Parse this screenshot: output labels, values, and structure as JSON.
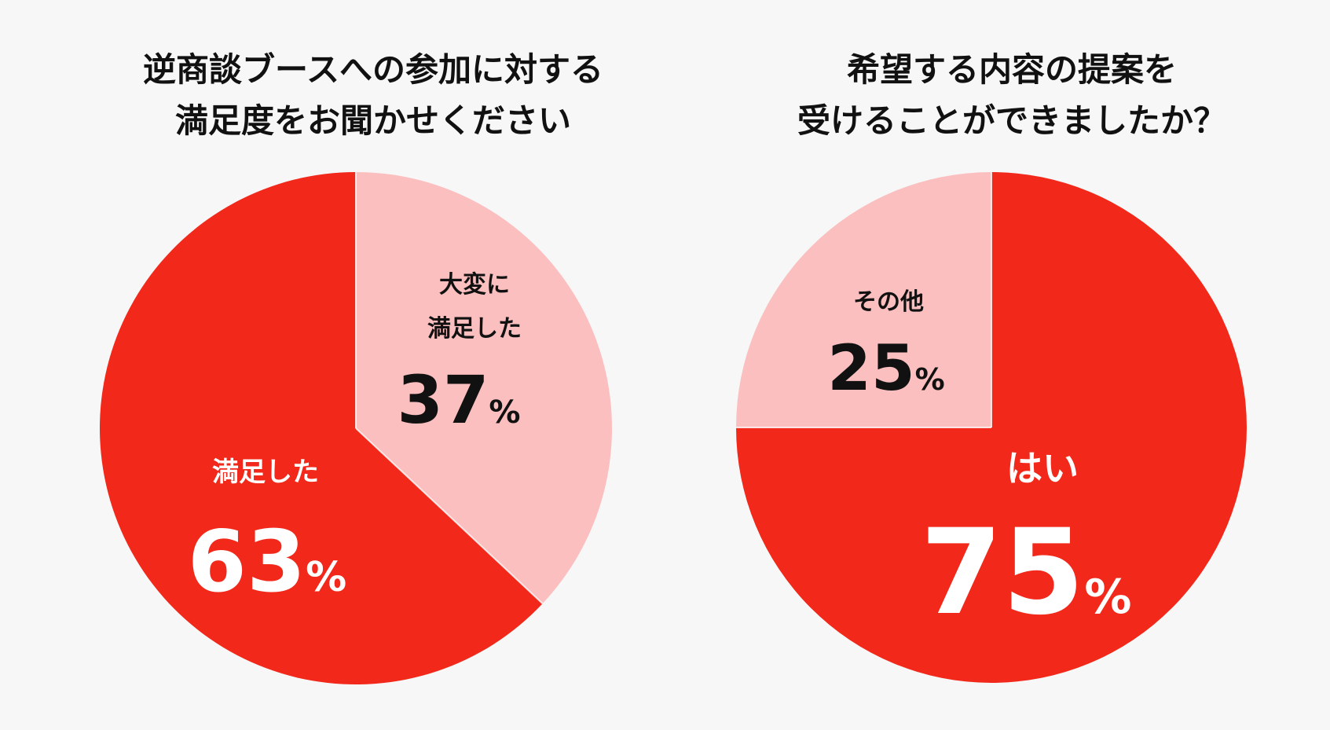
{
  "chart_data": [
    {
      "type": "pie",
      "title_lines": [
        "逆商談ブースへの参加に対する",
        "満足度をお聞かせください"
      ],
      "slices": [
        {
          "label_lines": [
            "大変に",
            "満足した"
          ],
          "value": 37,
          "value_text": "37",
          "unit": "%",
          "color": "#fbbfbf",
          "text_color": "#111111"
        },
        {
          "label_lines": [
            "満足した"
          ],
          "value": 63,
          "value_text": "63",
          "unit": "%",
          "color": "#f1281a",
          "text_color": "#ffffff"
        }
      ]
    },
    {
      "type": "pie",
      "title_lines": [
        "希望する内容の提案を",
        "受けることができましたか？"
      ],
      "slices": [
        {
          "label_lines": [
            "はい"
          ],
          "value": 75,
          "value_text": "75",
          "unit": "%",
          "color": "#f1281a",
          "text_color": "#ffffff"
        },
        {
          "label_lines": [
            "その他"
          ],
          "value": 25,
          "value_text": "25",
          "unit": "%",
          "color": "#fbbfbf",
          "text_color": "#111111"
        }
      ]
    }
  ]
}
